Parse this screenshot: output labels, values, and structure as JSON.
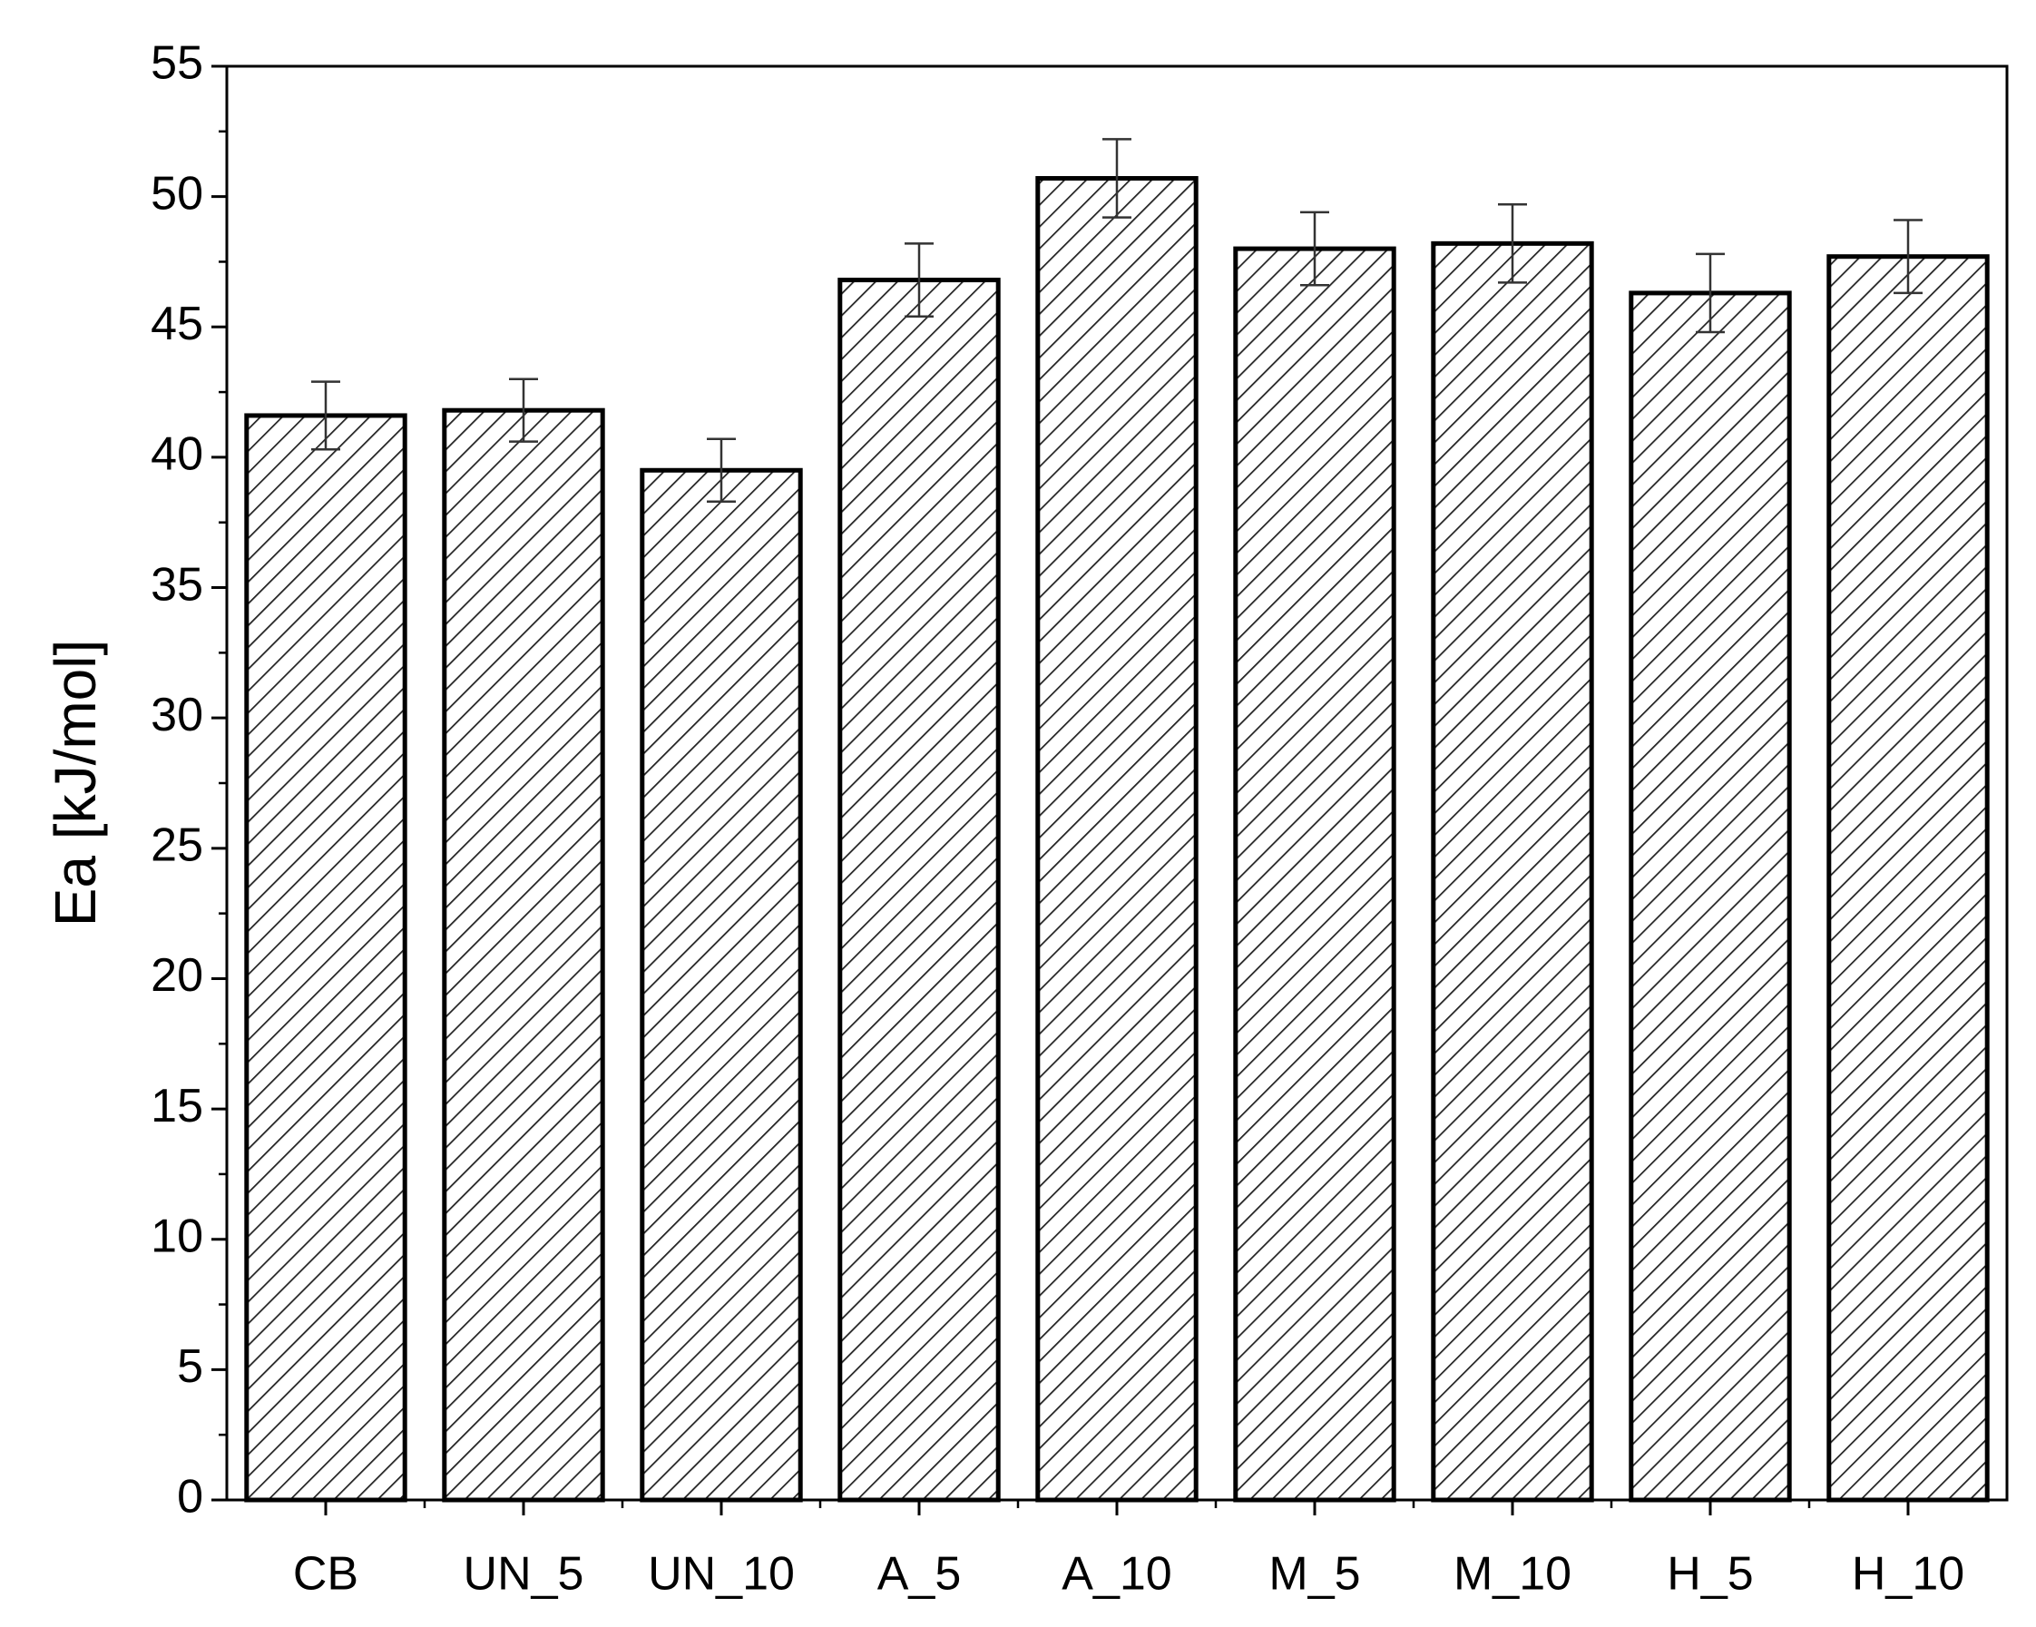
{
  "chart_data": {
    "type": "bar",
    "ylabel": "Ea [kJ/mol]",
    "categories": [
      "CB",
      "UN_5",
      "UN_10",
      "A_5",
      "A_10",
      "M_5",
      "M_10",
      "H_5",
      "H_10"
    ],
    "values": [
      41.6,
      41.8,
      39.5,
      46.8,
      50.7,
      48.0,
      48.2,
      46.3,
      47.7
    ],
    "errors": [
      1.3,
      1.2,
      1.2,
      1.4,
      1.5,
      1.4,
      1.5,
      1.5,
      1.4
    ],
    "color": "#000000",
    "ylim": [
      0,
      55
    ],
    "yticks": [
      0,
      5,
      10,
      15,
      20,
      25,
      30,
      35,
      40,
      45,
      50,
      55
    ],
    "grid": false
  }
}
